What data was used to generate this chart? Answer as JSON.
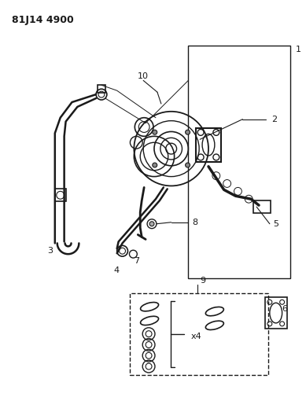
{
  "title": "81J14 4900",
  "bg_color": "#ffffff",
  "line_color": "#1a1a1a",
  "title_fontsize": 9,
  "label_fontsize": 8,
  "fig_width": 3.89,
  "fig_height": 5.33,
  "dpi": 100
}
